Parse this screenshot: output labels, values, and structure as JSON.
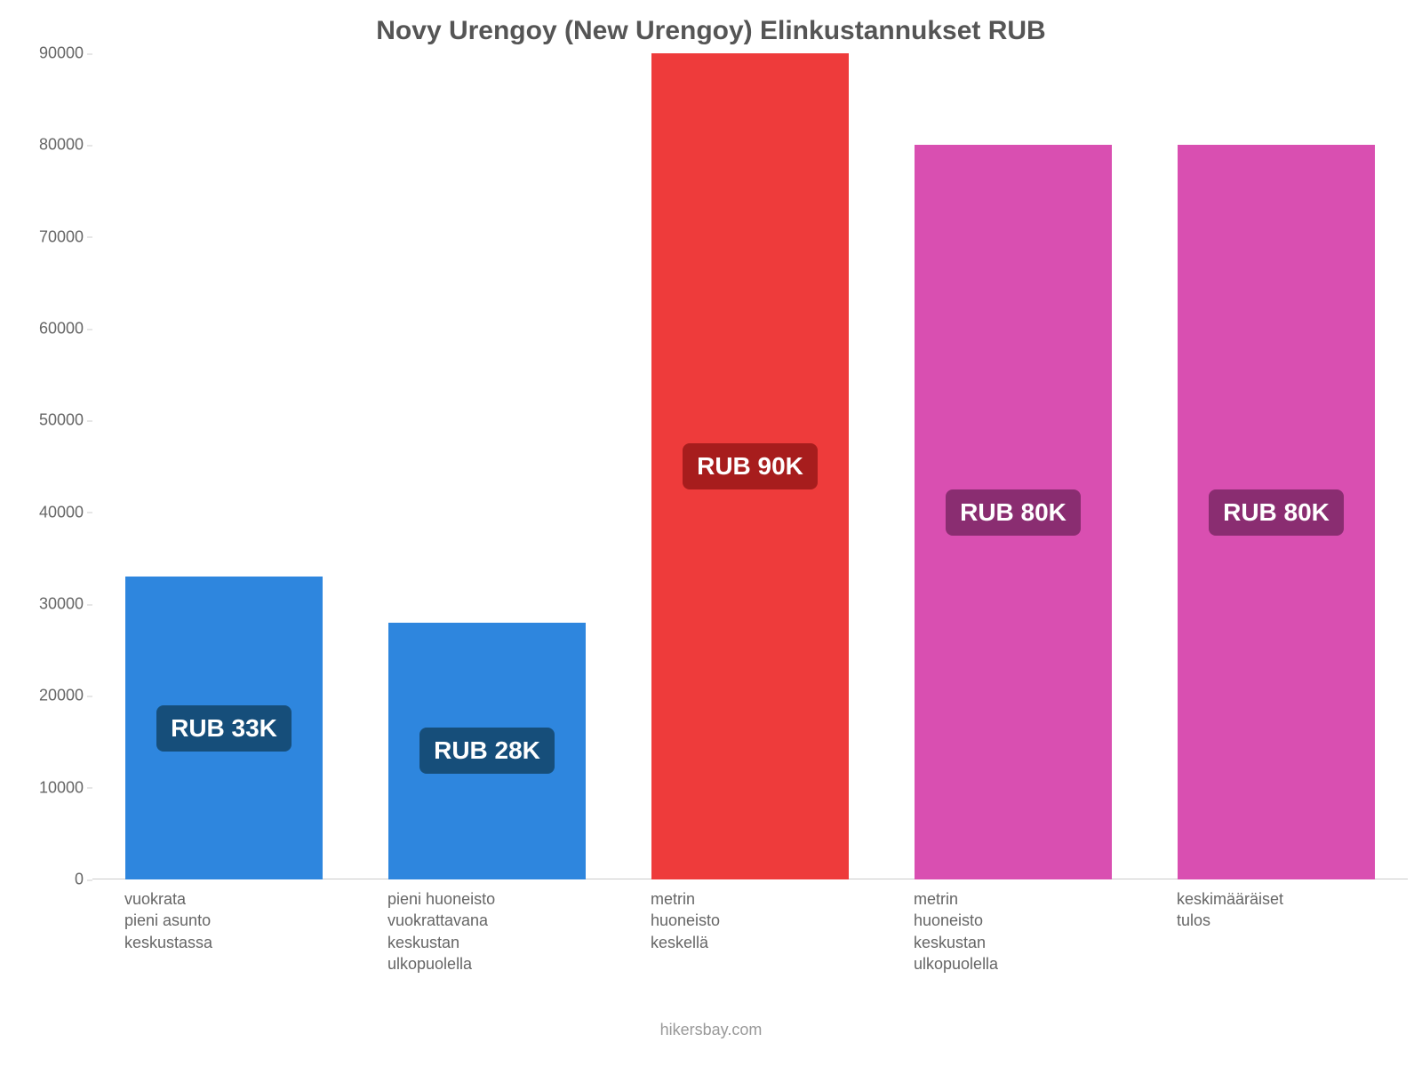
{
  "chart": {
    "type": "bar",
    "title": "Novy Urengoy (New Urengoy) Elinkustannukset RUB",
    "title_fontsize": 30,
    "title_color": "#555555",
    "background_color": "#ffffff",
    "ylim": [
      0,
      90000
    ],
    "ytick_step": 10000,
    "yticks": [
      0,
      10000,
      20000,
      30000,
      40000,
      50000,
      60000,
      70000,
      80000,
      90000
    ],
    "axis_color": "#cccccc",
    "tick_fontsize": 18,
    "tick_color": "#666666",
    "bar_width": 0.75,
    "categories": [
      "vuokrata\npieni asunto\nkeskustassa",
      "pieni huoneisto\nvuokrattavana\nkeskustan\nulkopuolella",
      "metrin\nhuoneisto\nkeskellä",
      "metrin\nhuoneisto\nkeskustan\nulkopuolella",
      "keskimääräiset\ntulos"
    ],
    "values": [
      33000,
      28000,
      90000,
      80000,
      80000
    ],
    "value_labels": [
      "RUB 33K",
      "RUB 28K",
      "RUB 90K",
      "RUB 80K",
      "RUB 80K"
    ],
    "bar_colors": [
      "#2e86de",
      "#2e86de",
      "#ee3b3b",
      "#d94fb1",
      "#d94fb1"
    ],
    "badge_bg_colors": [
      "#164e7a",
      "#164e7a",
      "#a71d1d",
      "#8a2d71",
      "#8a2d71"
    ],
    "badge_fontsize": 28,
    "badge_text_color": "#ffffff",
    "xlabel_fontsize": 18,
    "xlabel_color": "#666666",
    "attribution": "hikersbay.com",
    "attribution_color": "#999999",
    "attribution_fontsize": 18
  }
}
